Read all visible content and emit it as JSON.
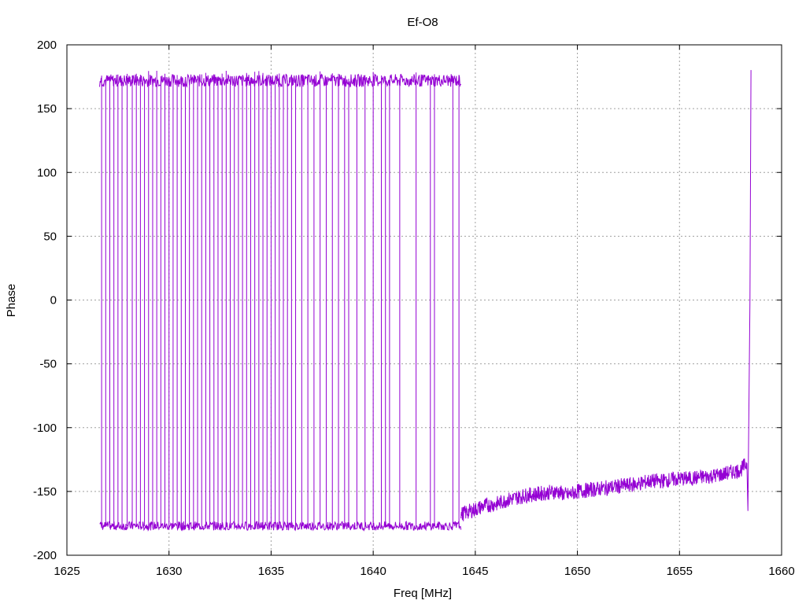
{
  "chart_data": {
    "type": "line",
    "title": "Ef-O8",
    "xlabel": "Freq [MHz]",
    "ylabel": "Phase",
    "xlim": [
      1625,
      1660
    ],
    "ylim": [
      -200,
      200
    ],
    "xticks": [
      1625,
      1630,
      1635,
      1640,
      1645,
      1650,
      1655,
      1660
    ],
    "yticks": [
      -200,
      -150,
      -100,
      -50,
      0,
      50,
      100,
      150,
      200
    ],
    "grid": true,
    "series": [
      {
        "color": "#9400d3",
        "wrap_x_start": 1626.6,
        "wrap_x_end": 1644.3,
        "wrap_upper_level": 172,
        "wrap_lower_level": -177,
        "wrap_x": [
          1626.7,
          1626.9,
          1627.1,
          1627.3,
          1627.5,
          1627.7,
          1627.95,
          1628.2,
          1628.4,
          1628.6,
          1628.8,
          1629.0,
          1629.2,
          1629.4,
          1629.6,
          1629.8,
          1630.0,
          1630.2,
          1630.4,
          1630.6,
          1630.8,
          1631.0,
          1631.2,
          1631.4,
          1631.6,
          1631.8,
          1632.0,
          1632.2,
          1632.4,
          1632.6,
          1632.8,
          1633.0,
          1633.2,
          1633.4,
          1633.6,
          1633.8,
          1634.0,
          1634.2,
          1634.4,
          1634.6,
          1634.8,
          1635.0,
          1635.2,
          1635.4,
          1635.6,
          1635.8,
          1636.0,
          1636.2,
          1636.5,
          1636.8,
          1637.1,
          1637.4,
          1637.7,
          1638.0,
          1638.3,
          1638.6,
          1638.8,
          1639.2,
          1639.6,
          1640.0,
          1640.4,
          1640.6,
          1640.8,
          1641.3,
          1642.1,
          1642.8,
          1643.0,
          1643.9,
          1644.2
        ],
        "points": [
          [
            1644.3,
            -168
          ],
          [
            1645.0,
            -164
          ],
          [
            1645.5,
            -161
          ],
          [
            1646.0,
            -160
          ],
          [
            1646.5,
            -157
          ],
          [
            1647.0,
            -155
          ],
          [
            1647.5,
            -153
          ],
          [
            1648.0,
            -152
          ],
          [
            1648.5,
            -151
          ],
          [
            1649.0,
            -150
          ],
          [
            1649.5,
            -153
          ],
          [
            1650.0,
            -150
          ],
          [
            1650.5,
            -149
          ],
          [
            1651.0,
            -148
          ],
          [
            1651.5,
            -147
          ],
          [
            1652.0,
            -146
          ],
          [
            1652.5,
            -145
          ],
          [
            1653.0,
            -144
          ],
          [
            1653.5,
            -142
          ],
          [
            1654.0,
            -142
          ],
          [
            1654.5,
            -141
          ],
          [
            1655.0,
            -140
          ],
          [
            1655.5,
            -140
          ],
          [
            1656.0,
            -139
          ],
          [
            1656.5,
            -138
          ],
          [
            1657.0,
            -137
          ],
          [
            1657.5,
            -135
          ],
          [
            1658.0,
            -133
          ],
          [
            1658.3,
            -128
          ],
          [
            1658.35,
            -165
          ],
          [
            1658.45,
            0
          ],
          [
            1658.5,
            180
          ]
        ]
      }
    ]
  }
}
